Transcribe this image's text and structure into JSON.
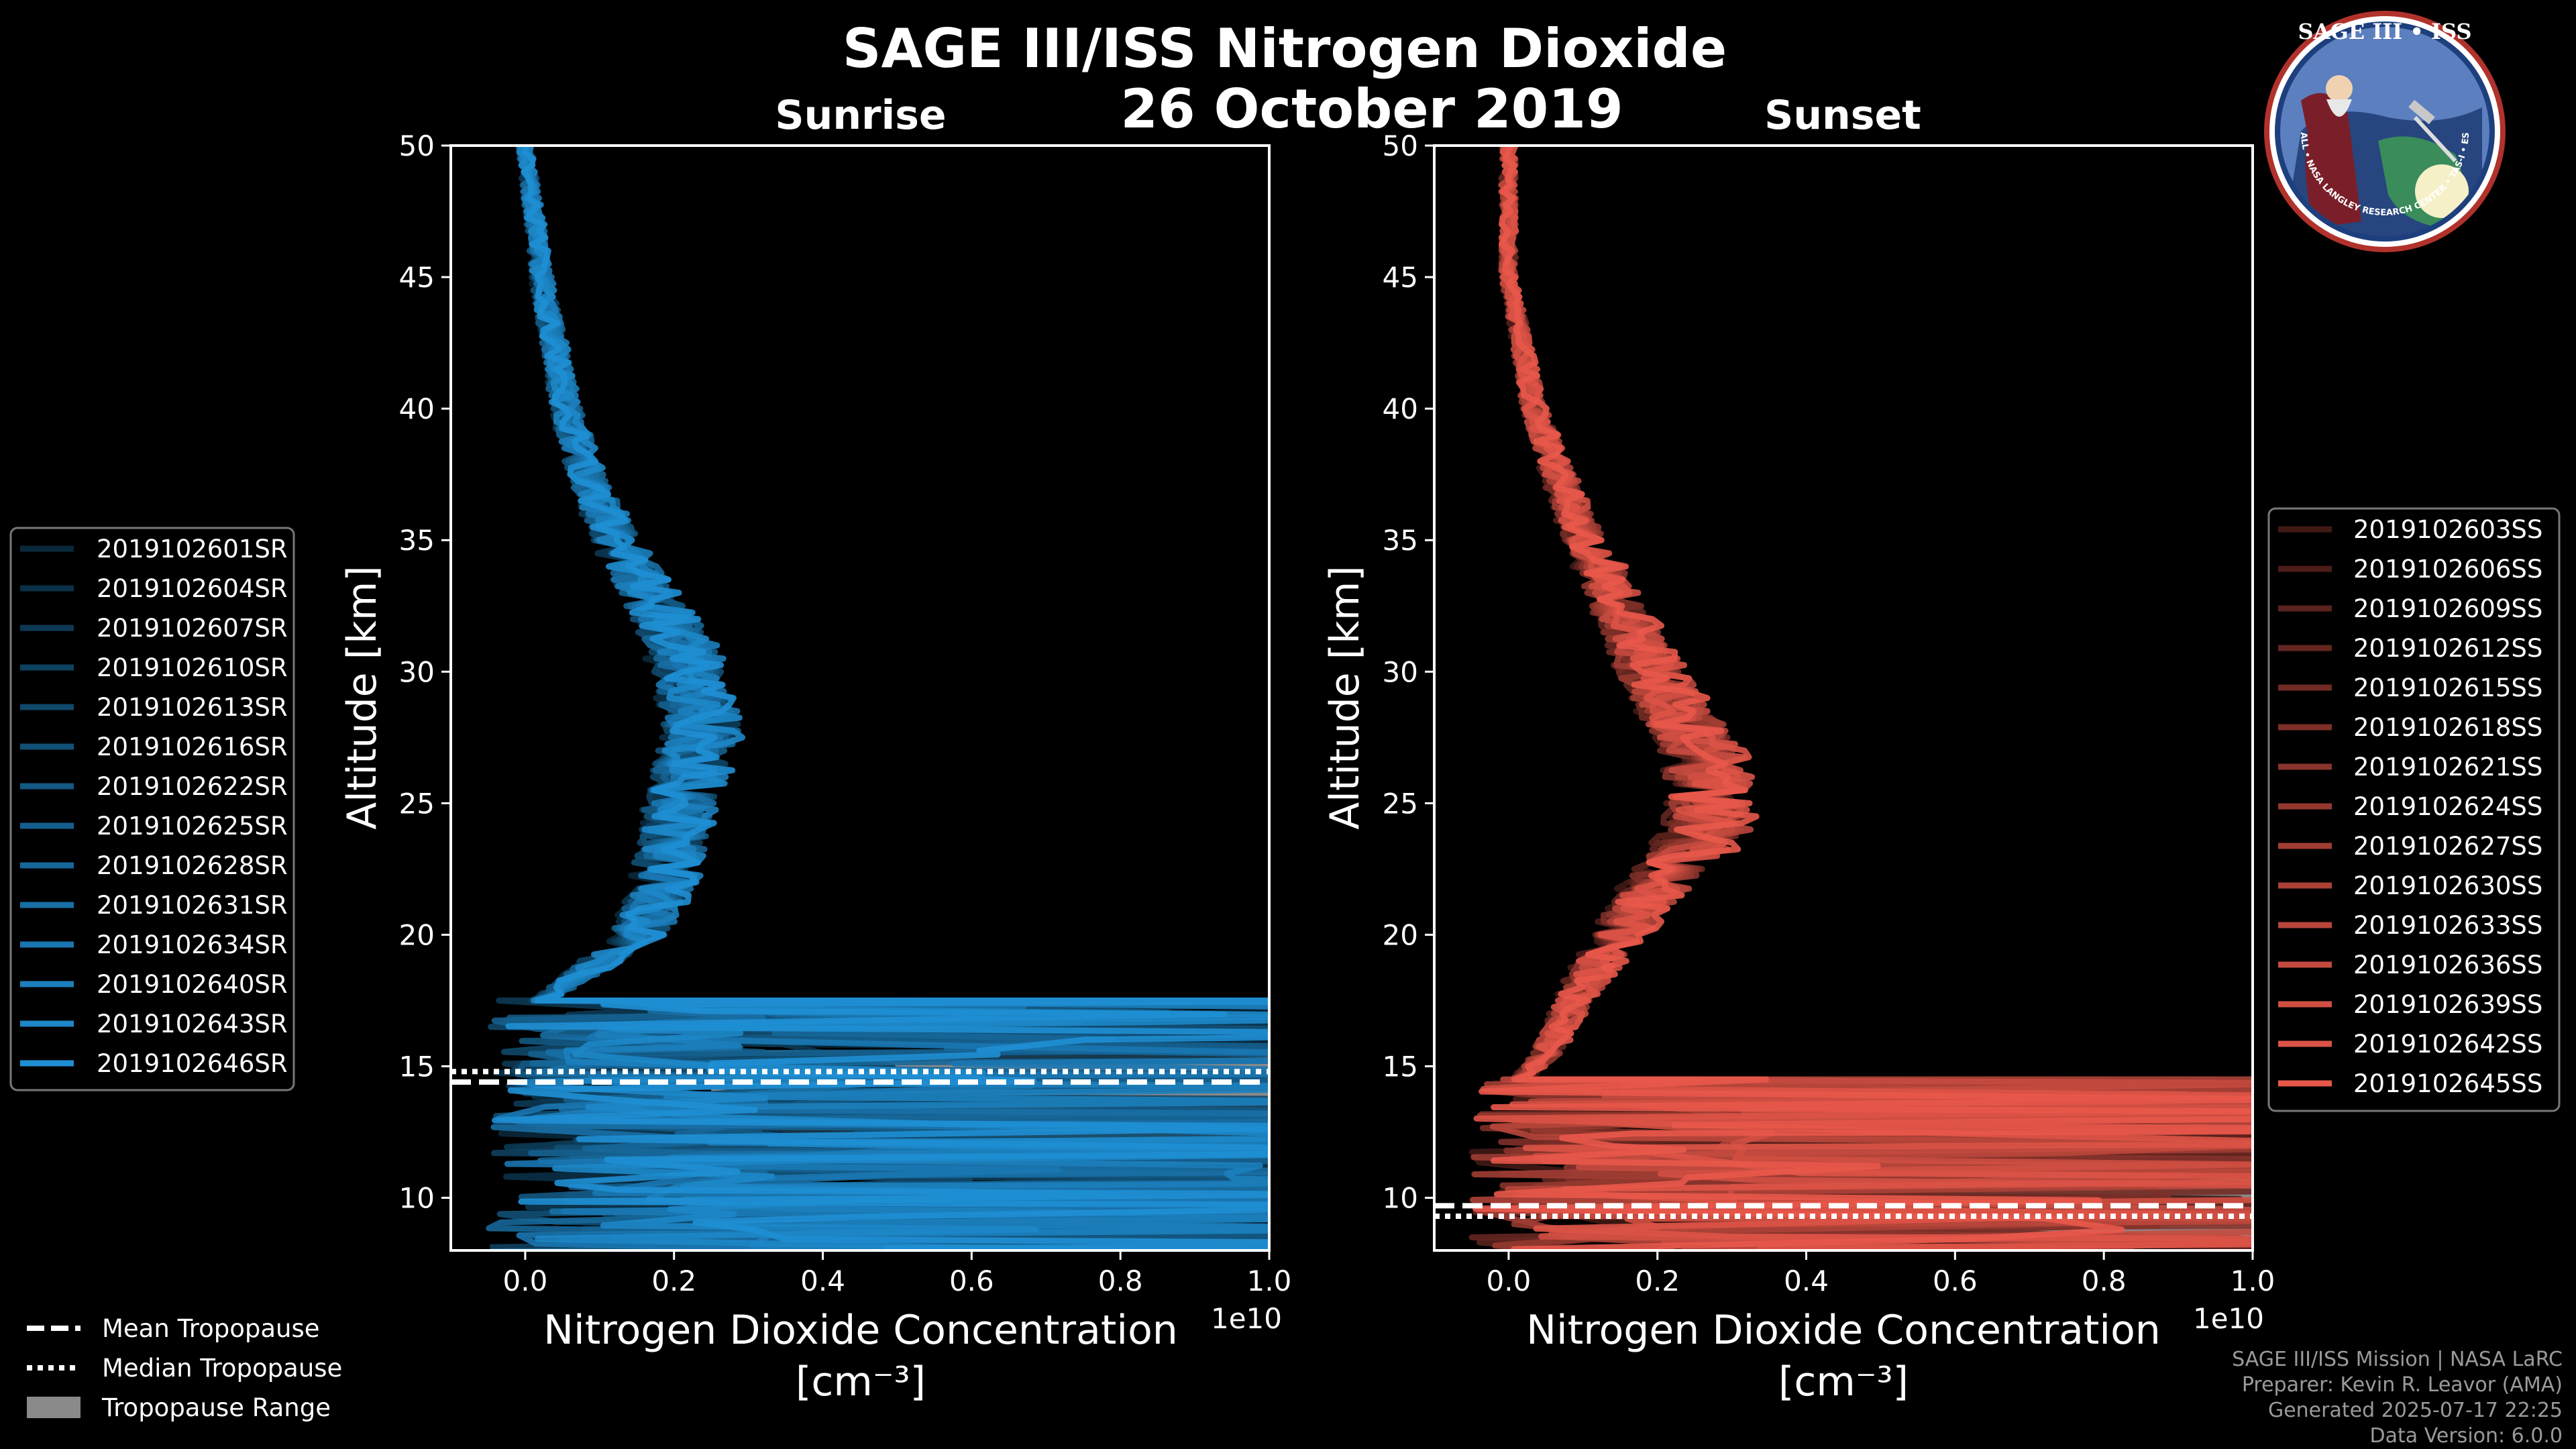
{
  "title": "SAGE III/ISS Nitrogen Dioxide",
  "date": "26 October 2019",
  "logo": {
    "text": "SAGE III • ISS",
    "ring_text": "BALL • NASA LANGLEY RESEARCH CENTER • TAS-I • ESA"
  },
  "credits": [
    "SAGE III/ISS Mission | NASA LaRC",
    "Preparer: Kevin R. Leavor (AMA)",
    "Generated 2025-07-17 22:25",
    "Data Version: 6.0.0"
  ],
  "tropopause_legend": [
    {
      "label": "Mean Tropopause",
      "style": "dashed"
    },
    {
      "label": "Median Tropopause",
      "style": "dotted"
    },
    {
      "label": "Tropopause Range",
      "style": "patch"
    }
  ],
  "chart_data": [
    {
      "type": "line",
      "title": "Sunrise",
      "xlabel": "Nitrogen Dioxide Concentration",
      "xlabel_unit": "[cm⁻³]",
      "ylabel": "Altitude [km]",
      "xlim": [
        -0.1,
        1.0
      ],
      "ylim": [
        8,
        50
      ],
      "x_ticks": [
        "0.0",
        "0.2",
        "0.4",
        "0.6",
        "0.8",
        "1.0"
      ],
      "x_tick_values": [
        0.0,
        0.2,
        0.4,
        0.6,
        0.8,
        1.0
      ],
      "y_ticks": [
        "10",
        "15",
        "20",
        "25",
        "30",
        "35",
        "40",
        "45",
        "50"
      ],
      "y_tick_values": [
        10,
        15,
        20,
        25,
        30,
        35,
        40,
        45,
        50
      ],
      "offset_label": "1e10",
      "color": "#1f8fd4",
      "profile_shape": [
        [
          50,
          0.0
        ],
        [
          45,
          0.02
        ],
        [
          40,
          0.05
        ],
        [
          37,
          0.08
        ],
        [
          34,
          0.13
        ],
        [
          31,
          0.19
        ],
        [
          28,
          0.22
        ],
        [
          25,
          0.19
        ],
        [
          22,
          0.17
        ],
        [
          20,
          0.14
        ],
        [
          18.5,
          0.07
        ],
        [
          17.5,
          0.02
        ]
      ],
      "tropopause": {
        "mean": 14.4,
        "median": 14.8,
        "range": [
          12.3,
          15.6
        ]
      },
      "series": [
        {
          "name": "2019102601SR"
        },
        {
          "name": "2019102604SR"
        },
        {
          "name": "2019102607SR"
        },
        {
          "name": "2019102610SR"
        },
        {
          "name": "2019102613SR"
        },
        {
          "name": "2019102616SR"
        },
        {
          "name": "2019102622SR"
        },
        {
          "name": "2019102625SR"
        },
        {
          "name": "2019102628SR"
        },
        {
          "name": "2019102631SR"
        },
        {
          "name": "2019102634SR"
        },
        {
          "name": "2019102640SR"
        },
        {
          "name": "2019102643SR"
        },
        {
          "name": "2019102646SR"
        }
      ]
    },
    {
      "type": "line",
      "title": "Sunset",
      "xlabel": "Nitrogen Dioxide Concentration",
      "xlabel_unit": "[cm⁻³]",
      "ylabel": "Altitude [km]",
      "xlim": [
        -0.1,
        1.0
      ],
      "ylim": [
        8,
        50
      ],
      "x_ticks": [
        "0.0",
        "0.2",
        "0.4",
        "0.6",
        "0.8",
        "1.0"
      ],
      "x_tick_values": [
        0.0,
        0.2,
        0.4,
        0.6,
        0.8,
        1.0
      ],
      "y_ticks": [
        "10",
        "15",
        "20",
        "25",
        "30",
        "35",
        "40",
        "45",
        "50"
      ],
      "y_tick_values": [
        10,
        15,
        20,
        25,
        30,
        35,
        40,
        45,
        50
      ],
      "offset_label": "1e10",
      "color": "#e8584a",
      "profile_shape": [
        [
          50,
          0.0
        ],
        [
          45,
          0.0
        ],
        [
          40,
          0.04
        ],
        [
          36,
          0.1
        ],
        [
          33,
          0.16
        ],
        [
          30,
          0.22
        ],
        [
          27,
          0.3
        ],
        [
          24,
          0.31
        ],
        [
          21,
          0.2
        ],
        [
          19,
          0.14
        ],
        [
          17.5,
          0.1
        ],
        [
          15.5,
          0.06
        ],
        [
          14.5,
          0.02
        ]
      ],
      "tropopause": {
        "mean": 9.7,
        "median": 9.3,
        "range": [
          8.3,
          11.3
        ]
      },
      "series": [
        {
          "name": "2019102603SS"
        },
        {
          "name": "2019102606SS"
        },
        {
          "name": "2019102609SS"
        },
        {
          "name": "2019102612SS"
        },
        {
          "name": "2019102615SS"
        },
        {
          "name": "2019102618SS"
        },
        {
          "name": "2019102621SS"
        },
        {
          "name": "2019102624SS"
        },
        {
          "name": "2019102627SS"
        },
        {
          "name": "2019102630SS"
        },
        {
          "name": "2019102633SS"
        },
        {
          "name": "2019102636SS"
        },
        {
          "name": "2019102639SS"
        },
        {
          "name": "2019102642SS"
        },
        {
          "name": "2019102645SS"
        }
      ]
    }
  ]
}
